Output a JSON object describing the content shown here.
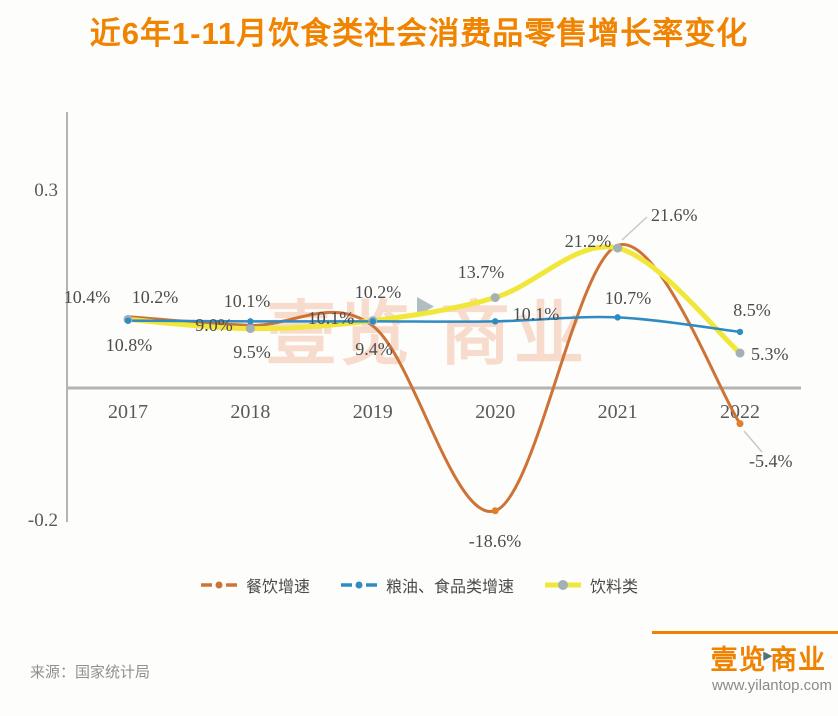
{
  "title": "近6年1-11月饮食类社会消费品零售增长率变化",
  "source": "来源：国家统计局",
  "watermark": {
    "left": "壹览",
    "right": "商业"
  },
  "brand": {
    "name_left": "壹览",
    "name_right": "商业",
    "url": "www.yilantop.com"
  },
  "colors": {
    "title": "#f08300",
    "axis": "#b4b4b4",
    "point_label": "#4d4d4d",
    "tick_label": "#595959",
    "legend_text": "#4a4a4a",
    "leader_line": "#c9c9c9",
    "watermark_text": "#f4c6ad",
    "watermark_triangle": "#53707c",
    "source_text": "#909090",
    "brand_orange": "#ef8200",
    "brand_url": "#8a8a8a"
  },
  "chart_data": {
    "type": "line",
    "title": "近6年1-11月饮食类社会消费品零售增长率变化",
    "categories": [
      "2017",
      "2018",
      "2019",
      "2020",
      "2021",
      "2022"
    ],
    "series": [
      {
        "name": "餐饮增速",
        "color": "#cd7336",
        "marker_color": "#e0802a",
        "values": [
          10.8,
          9.5,
          9.4,
          -18.6,
          21.6,
          -5.4
        ],
        "labels": [
          "10.8%",
          "9.5%",
          "9.4%",
          "-18.6%",
          "21.6%",
          "-5.4%"
        ]
      },
      {
        "name": "粮油、食品类增速",
        "color": "#2e8bc4",
        "marker_color": "#2e8bc4",
        "values": [
          10.2,
          10.1,
          10.1,
          10.1,
          10.7,
          8.5
        ],
        "labels": [
          "10.2%",
          "10.1%",
          "10.1%",
          "10.1%",
          "10.7%",
          "8.5%"
        ]
      },
      {
        "name": "饮料类",
        "color": "#f1e73b",
        "marker_color": "#a3b0b5",
        "values": [
          10.4,
          9.0,
          10.2,
          13.7,
          21.2,
          5.3
        ],
        "labels": [
          "10.4%",
          "9.0%",
          "10.2%",
          "13.7%",
          "21.2%",
          "5.3%"
        ]
      }
    ],
    "xlabel": "",
    "ylabel": "",
    "ylim": [
      -0.2,
      0.4
    ],
    "yticks": [
      "0.3",
      "-0.2"
    ],
    "grid": false,
    "legend_position": "bottom"
  }
}
